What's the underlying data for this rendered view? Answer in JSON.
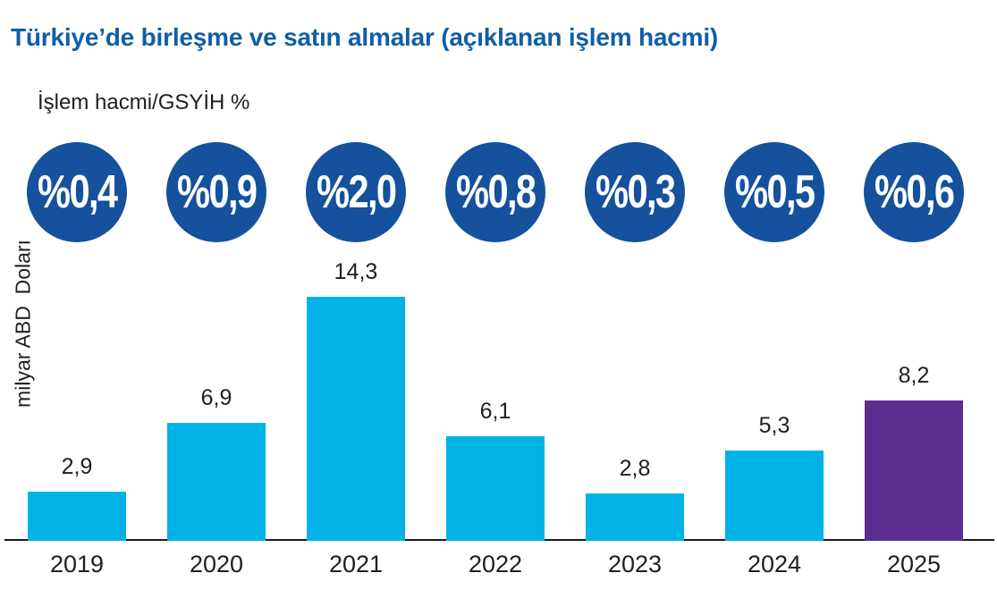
{
  "header": {
    "title": "Türkiye’de birleşme ve satın almalar (açıklanan işlem hacmi)"
  },
  "chart_data": {
    "type": "bar",
    "title": "Türkiye’de birleşme ve satın almalar (açıklanan işlem hacmi)",
    "ratio_header": "İşlem hacmi/GSYİH %",
    "ylabel": "milyar ABD  Doları",
    "categories": [
      "2019",
      "2020",
      "2021",
      "2022",
      "2023",
      "2024",
      "2025"
    ],
    "values": [
      2.9,
      6.9,
      14.3,
      6.1,
      2.8,
      5.3,
      8.2
    ],
    "value_labels": [
      "2,9",
      "6,9",
      "14,3",
      "6,1",
      "2,8",
      "5,3",
      "8,2"
    ],
    "gdp_ratios": [
      "%0,4",
      "%0,9",
      "%2,0",
      "%0,8",
      "%0,3",
      "%0,5",
      "%0,6"
    ],
    "highlight_index": 6,
    "ylim": [
      0,
      15
    ],
    "grid": false,
    "legend": "none",
    "colors": {
      "bar": "#00b2e6",
      "highlight_bar": "#5b2d8e",
      "ratio_badge": "#15519c",
      "ratio_badge_text": "#ffffff",
      "title": "#0f5ea7",
      "axis": "#1a1a1a",
      "text": "#1f1f1f"
    }
  }
}
